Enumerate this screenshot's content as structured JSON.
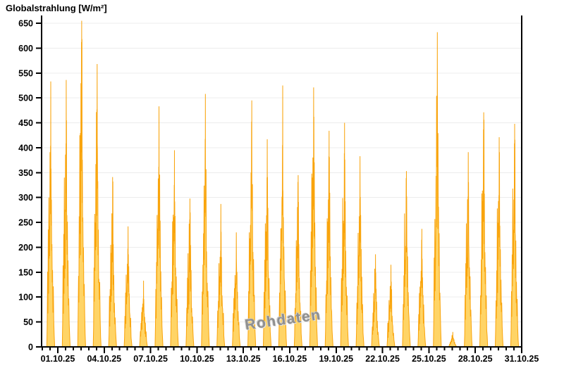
{
  "watermark": {
    "text": "Rohdaten",
    "color": "#8f8f8f"
  },
  "chart_data": {
    "type": "area",
    "title": "Globalstrahlung [W/m²]",
    "series_name": "Globalstrahlung",
    "unit": "W/m²",
    "xlabel": "",
    "ylabel": "Globalstrahlung [W/m²]",
    "ylim": [
      0,
      650
    ],
    "y_tick_step": 50,
    "y_ticks": [
      0,
      50,
      100,
      150,
      200,
      250,
      300,
      350,
      400,
      450,
      500,
      550,
      600,
      650
    ],
    "x_tick_labels": [
      "01.10.25",
      "04.10.25",
      "07.10.25",
      "10.10.25",
      "13.10.25",
      "16.10.25",
      "19.10.25",
      "22.10.25",
      "25.10.25",
      "28.10.25",
      "31.10.25"
    ],
    "x_label_day_interval": 3,
    "grid": "horizontal",
    "legend": "none",
    "colors": {
      "line": "#F9A40C",
      "fill": "#FFD466",
      "grid": "#ECECEC",
      "axis": "#000000",
      "text": "#000000"
    },
    "days": [
      {
        "day": 1,
        "date": "01.10.25",
        "peak": 533,
        "subpeaks": [
          358,
          300
        ]
      },
      {
        "day": 2,
        "date": "02.10.25",
        "peak": 536,
        "subpeaks": [
          455,
          340
        ]
      },
      {
        "day": 3,
        "date": "03.10.25",
        "peak": 655,
        "subpeaks": [
          618,
          425
        ]
      },
      {
        "day": 4,
        "date": "04.10.25",
        "peak": 568,
        "subpeaks": [
          395,
          250
        ]
      },
      {
        "day": 5,
        "date": "05.10.25",
        "peak": 341,
        "subpeaks": [
          332,
          205
        ]
      },
      {
        "day": 6,
        "date": "06.10.25",
        "peak": 242,
        "subpeaks": [
          186,
          145
        ]
      },
      {
        "day": 7,
        "date": "07.10.25",
        "peak": 133,
        "subpeaks": [
          96,
          70
        ]
      },
      {
        "day": 8,
        "date": "08.10.25",
        "peak": 483,
        "subpeaks": [
          346,
          265
        ]
      },
      {
        "day": 9,
        "date": "09.10.25",
        "peak": 395,
        "subpeaks": [
          292,
          252
        ]
      },
      {
        "day": 10,
        "date": "10.10.25",
        "peak": 298,
        "subpeaks": [
          270,
          188
        ]
      },
      {
        "day": 11,
        "date": "11.10.25",
        "peak": 508,
        "subpeaks": [
          292,
          228
        ]
      },
      {
        "day": 12,
        "date": "12.10.25",
        "peak": 287,
        "subpeaks": [
          231,
          168
        ]
      },
      {
        "day": 13,
        "date": "13.10.25",
        "peak": 230,
        "subpeaks": [
          156,
          118
        ]
      },
      {
        "day": 14,
        "date": "14.10.25",
        "peak": 495,
        "subpeaks": [
          302,
          218
        ]
      },
      {
        "day": 15,
        "date": "15.10.25",
        "peak": 417,
        "subpeaks": [
          341,
          248
        ]
      },
      {
        "day": 16,
        "date": "16.10.25",
        "peak": 525,
        "subpeaks": [
          312,
          238
        ]
      },
      {
        "day": 17,
        "date": "17.10.25",
        "peak": 345,
        "subpeaks": [
          291,
          214
        ]
      },
      {
        "day": 18,
        "date": "18.10.25",
        "peak": 521,
        "subpeaks": [
          462,
          348
        ]
      },
      {
        "day": 19,
        "date": "19.10.25",
        "peak": 434,
        "subpeaks": [
          381,
          258
        ]
      },
      {
        "day": 20,
        "date": "20.10.25",
        "peak": 450,
        "subpeaks": [
          376,
          299
        ]
      },
      {
        "day": 21,
        "date": "21.10.25",
        "peak": 383,
        "subpeaks": [
          301,
          229
        ]
      },
      {
        "day": 22,
        "date": "22.10.25",
        "peak": 186,
        "subpeaks": [
          149,
          108
        ]
      },
      {
        "day": 23,
        "date": "23.10.25",
        "peak": 165,
        "subpeaks": [
          131,
          94
        ]
      },
      {
        "day": 24,
        "date": "24.10.25",
        "peak": 353,
        "subpeaks": [
          302,
          268
        ]
      },
      {
        "day": 25,
        "date": "25.10.25",
        "peak": 237,
        "subpeaks": [
          177,
          121
        ]
      },
      {
        "day": 26,
        "date": "26.10.25",
        "peak": 632,
        "subpeaks": [
          298,
          168
        ]
      },
      {
        "day": 27,
        "date": "27.10.25",
        "peak": 30,
        "subpeaks": [
          19,
          12
        ]
      },
      {
        "day": 28,
        "date": "28.10.25",
        "peak": 391,
        "subpeaks": [
          331,
          248
        ]
      },
      {
        "day": 29,
        "date": "29.10.25",
        "peak": 471,
        "subpeaks": [
          456,
          308
        ]
      },
      {
        "day": 30,
        "date": "30.10.25",
        "peak": 421,
        "subpeaks": [
          391,
          278
        ]
      },
      {
        "day": 31,
        "date": "31.10.25",
        "peak": 448,
        "subpeaks": [
          416,
          318
        ]
      }
    ]
  }
}
